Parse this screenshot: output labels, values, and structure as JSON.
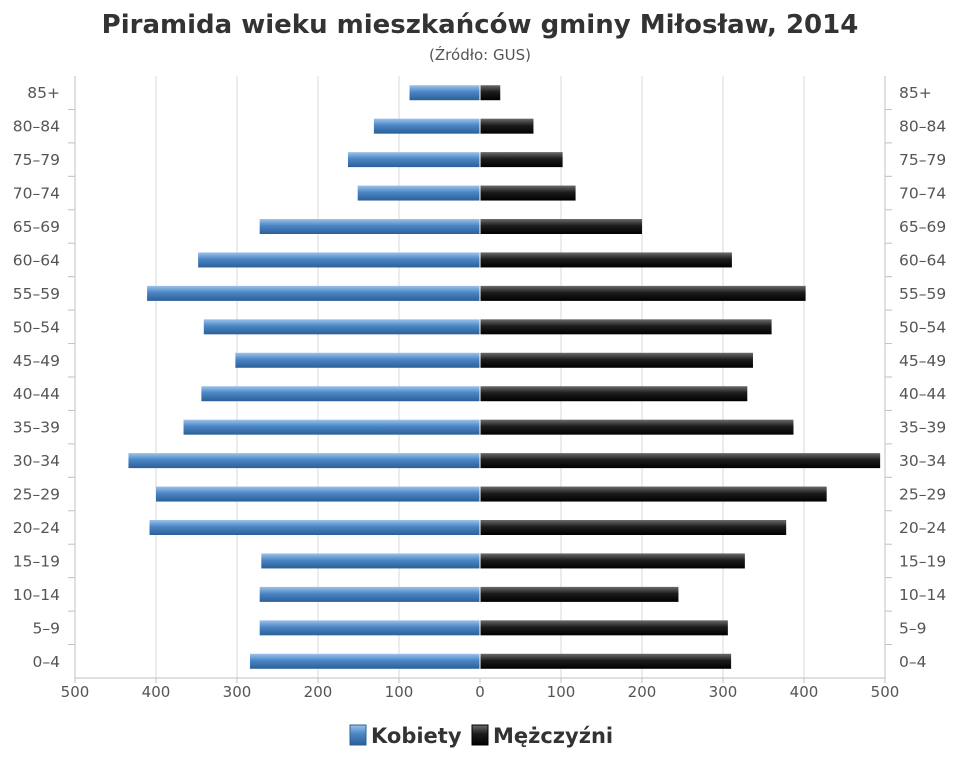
{
  "chart_data": {
    "type": "bar",
    "orientation": "horizontal-pyramid",
    "title": "Piramida wieku mieszkańców gminy Miłosław, 2014",
    "subtitle": "(Źródło: GUS)",
    "categories": [
      "85+",
      "80–84",
      "75–79",
      "70–74",
      "65–69",
      "60–64",
      "55–59",
      "50–54",
      "45–49",
      "40–44",
      "35–39",
      "30–34",
      "25–29",
      "20–24",
      "15–19",
      "10–14",
      "5–9",
      "0–4"
    ],
    "series": [
      {
        "name": "Kobiety",
        "side": "left",
        "color": "#4a86c5",
        "values": [
          87,
          131,
          163,
          151,
          272,
          348,
          411,
          341,
          302,
          344,
          366,
          434,
          400,
          408,
          270,
          272,
          272,
          284
        ]
      },
      {
        "name": "Mężczyźni",
        "side": "right",
        "color": "#1a1a1a",
        "values": [
          25,
          66,
          102,
          118,
          200,
          311,
          402,
          360,
          337,
          330,
          387,
          494,
          428,
          378,
          327,
          245,
          306,
          310
        ]
      }
    ],
    "xaxis_ticks": [
      "500",
      "400",
      "300",
      "200",
      "100",
      "0",
      "100",
      "200",
      "300",
      "400",
      "500"
    ],
    "xlim": [
      -500,
      500
    ],
    "grid": true,
    "legend_position": "bottom-center"
  }
}
